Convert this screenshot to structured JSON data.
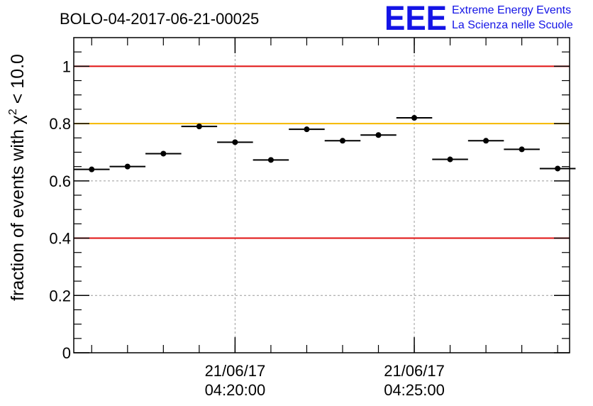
{
  "chart_data": {
    "type": "scatter",
    "title": "BOLO-04-2017-06-21-00025",
    "ylabel": "fraction of events with χ² < 10.0",
    "ylabel_parts": {
      "before": "fraction of events with ",
      "symbol": "χ",
      "sup": "2",
      "after": " < 10.0"
    },
    "xlabel": "",
    "ylim": [
      0,
      1.1
    ],
    "xlim": [
      "04:15:30",
      "04:29:20"
    ],
    "grid": true,
    "yticks": [
      {
        "value": 0,
        "label": "0"
      },
      {
        "value": 0.2,
        "label": "0.2"
      },
      {
        "value": 0.4,
        "label": "0.4"
      },
      {
        "value": 0.6,
        "label": "0.6"
      },
      {
        "value": 0.8,
        "label": "0.8"
      },
      {
        "value": 1.0,
        "label": "1"
      }
    ],
    "xticks": [
      {
        "time": "04:20:00",
        "date_label": "21/06/17",
        "time_label": "04:20:00"
      },
      {
        "time": "04:25:00",
        "date_label": "21/06/17",
        "time_label": "04:25:00"
      }
    ],
    "bin_width_seconds": 60,
    "x": [
      "04:16:00",
      "04:17:00",
      "04:18:00",
      "04:19:00",
      "04:20:00",
      "04:21:00",
      "04:22:00",
      "04:23:00",
      "04:24:00",
      "04:25:00",
      "04:26:00",
      "04:27:00",
      "04:28:00",
      "04:29:00"
    ],
    "values": [
      0.64,
      0.65,
      0.695,
      0.79,
      0.735,
      0.673,
      0.78,
      0.74,
      0.76,
      0.82,
      0.675,
      0.74,
      0.71,
      0.643
    ],
    "reference_lines": [
      {
        "value": 1.0,
        "color": "#e01010"
      },
      {
        "value": 0.8,
        "color": "#f5b800"
      },
      {
        "value": 0.4,
        "color": "#e01010"
      }
    ]
  },
  "logo": {
    "mark": "EEE",
    "line1": "Extreme Energy Events",
    "line2": "La Scienza nelle Scuole",
    "color": "#1414e6"
  }
}
